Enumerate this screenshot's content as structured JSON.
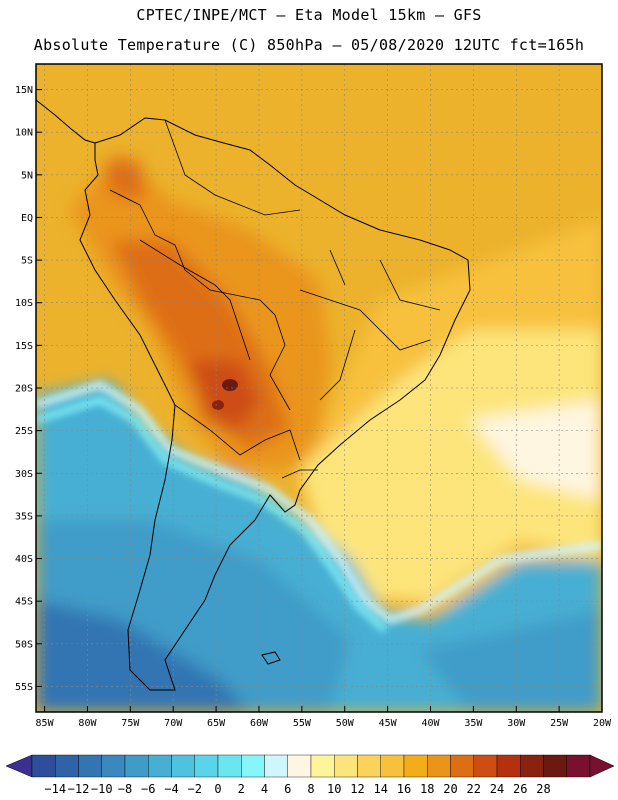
{
  "header": {
    "line1": "CPTEC/INPE/MCT –  Eta Model 15km – GFS",
    "line2": "Absolute Temperature (C) 850hPa – 05/08/2020 12UTC fct=165h"
  },
  "axes": {
    "lat_labels": [
      "15N",
      "10N",
      "5N",
      "EQ",
      "5S",
      "10S",
      "15S",
      "20S",
      "25S",
      "30S",
      "35S",
      "40S",
      "45S",
      "50S",
      "55S"
    ],
    "lon_labels": [
      "85W",
      "80W",
      "75W",
      "70W",
      "65W",
      "60W",
      "55W",
      "50W",
      "45W",
      "40W",
      "35W",
      "30W",
      "25W",
      "20W"
    ],
    "lat_range": [
      18,
      -58
    ],
    "lon_range": [
      -86,
      -20
    ]
  },
  "colorbar": {
    "labels": [
      "-14",
      "-12",
      "-10",
      "-8",
      "-6",
      "-4",
      "-2",
      "0",
      "2",
      "4",
      "6",
      "8",
      "10",
      "12",
      "14",
      "16",
      "18",
      "20",
      "22",
      "24",
      "26",
      "28"
    ],
    "colors": [
      "#2d4e9b",
      "#2f62a8",
      "#3375b2",
      "#3a88be",
      "#3f9cc8",
      "#46afd3",
      "#4ec2de",
      "#59d4e8",
      "#6ae6f1",
      "#86f6fa",
      "#cff6fb",
      "#fff6e1",
      "#fef59a",
      "#fde57b",
      "#fbd35c",
      "#f7c13d",
      "#f3ad1b",
      "#ea951a",
      "#de6e14",
      "#ce4d12",
      "#b3310f",
      "#8a2210",
      "#6b1a12",
      "#7a1030"
    ],
    "under_color": "#3b2f8f",
    "over_color": "#7a1030"
  },
  "map": {
    "region": "South America",
    "variable": "Absolute Temperature (C) 850hPa",
    "colors": {
      "ocean_north": "#ecb22c",
      "ocean_east": "#f2c44a",
      "subtropical_atlantic": "#fde07a",
      "warm_core": "#c84910",
      "hot_core": "#6b1a12",
      "cold_south": "#3f9cc8",
      "very_cold": "#3375b2",
      "coast_cold": "#6ae6f1",
      "country_line": "#000000"
    }
  }
}
